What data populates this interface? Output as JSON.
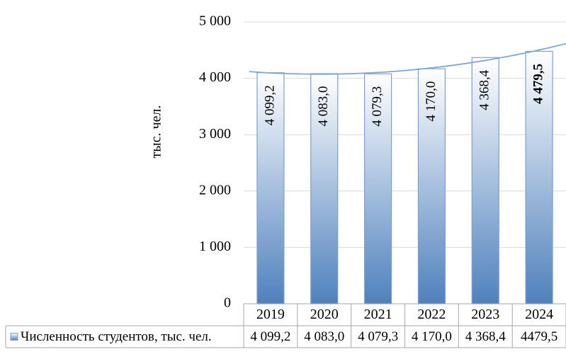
{
  "chart_data": {
    "type": "bar",
    "categories": [
      "2019",
      "2020",
      "2021",
      "2022",
      "2023",
      "2024"
    ],
    "series": [
      {
        "name": "Численность студентов, тыс. чел.",
        "values": [
          4099.2,
          4083.0,
          4079.3,
          4170.0,
          4368.4,
          4479.5
        ],
        "data_labels": [
          "4 099,2",
          "4 083,0",
          "4 079,3",
          "4 170,0",
          "4 368,4",
          "4 479,5"
        ],
        "table_values": [
          "4 099,2",
          "4 083,0",
          "4 079,3",
          "4 170,0",
          "4 368,4",
          "4479,5"
        ]
      }
    ],
    "ylabel": "тыс. чел.",
    "xlabel": "",
    "ylim": [
      0,
      5000
    ],
    "yticks": [
      {
        "value": 0,
        "label": "0"
      },
      {
        "value": 1000,
        "label": "1 000"
      },
      {
        "value": 2000,
        "label": "2 000"
      },
      {
        "value": 3000,
        "label": "3 000"
      },
      {
        "value": 4000,
        "label": "4 000"
      },
      {
        "value": 5000,
        "label": "5 000"
      }
    ],
    "grid": true,
    "trendline": "polynomial",
    "legend": "data-table",
    "bold_label_index": 5,
    "colors": {
      "bar_top": "#ffffff",
      "bar_bottom": "#4f81bd",
      "bar_border": "#7f9fcf",
      "trend": "#7fa6d6",
      "grid": "#d9d9d9",
      "table_border": "#a6a6a6"
    }
  }
}
